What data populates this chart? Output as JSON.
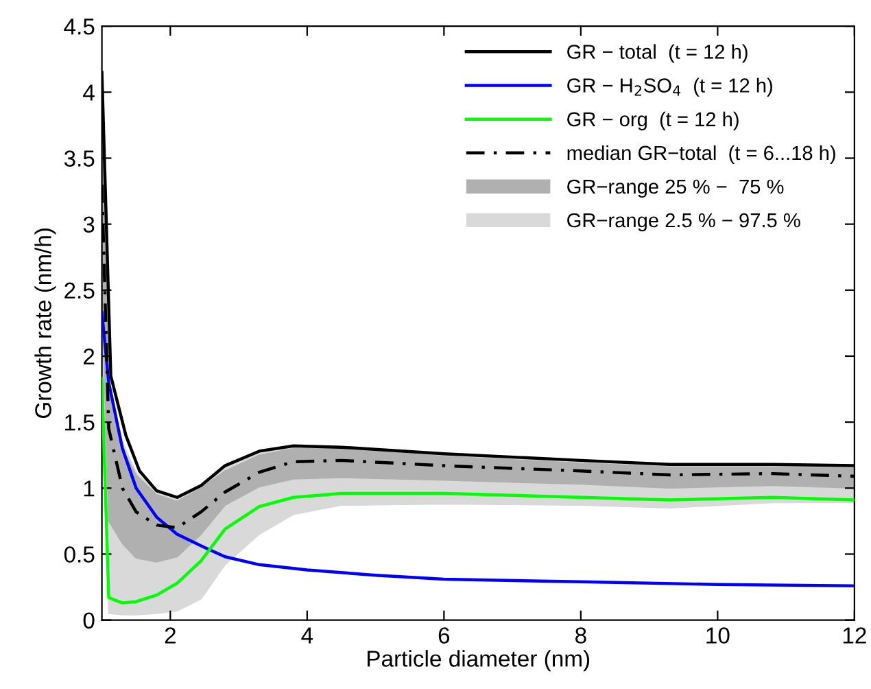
{
  "chart_data": {
    "type": "line",
    "xlabel": "Particle diameter (nm)",
    "ylabel": "Growth rate (nm/h)",
    "xlim": [
      1,
      12
    ],
    "ylim": [
      0,
      4.5
    ],
    "xticks": [
      2,
      4,
      6,
      8,
      10,
      12
    ],
    "yticks": [
      0,
      0.5,
      1,
      1.5,
      2,
      2.5,
      3,
      3.5,
      4,
      4.5
    ],
    "grid": false,
    "legend": "top right",
    "marker": "none",
    "series": [
      {
        "name": "GR−range 2.5 % − 97.5 %",
        "color": "#d9d9d9",
        "x": [
          1,
          1.1,
          1.3,
          1.5,
          1.8,
          2.1,
          2.45,
          2.8,
          3.3,
          3.8,
          4.5,
          6,
          8,
          9.3,
          10.8,
          12
        ],
        "values": [
          null,
          null,
          null,
          null,
          null,
          null,
          null,
          null,
          null,
          null,
          null,
          null,
          null,
          null,
          null,
          null
        ],
        "lower": [
          1.5,
          0.05,
          0.04,
          0.04,
          0.05,
          0.07,
          0.16,
          0.42,
          0.65,
          0.8,
          0.87,
          0.88,
          0.87,
          0.85,
          0.89,
          0.89
        ],
        "upper": [
          4.1,
          1.8,
          1.35,
          1.12,
          0.97,
          0.93,
          1.02,
          1.16,
          1.28,
          1.32,
          1.31,
          1.26,
          1.21,
          1.18,
          1.18,
          1.17
        ]
      },
      {
        "name": "GR−range 25 % −  75 %",
        "color": "#b0b0b0",
        "x": [
          1,
          1.1,
          1.3,
          1.5,
          1.8,
          2.1,
          2.45,
          2.8,
          3.3,
          3.8,
          4.5,
          6,
          8,
          9.3,
          10.8,
          12
        ],
        "values": [
          null,
          null,
          null,
          null,
          null,
          null,
          null,
          null,
          null,
          null,
          null,
          null,
          null,
          null,
          null,
          null
        ],
        "lower": [
          2.5,
          0.75,
          0.58,
          0.47,
          0.44,
          0.48,
          0.65,
          0.87,
          1.01,
          1.07,
          1.08,
          1.06,
          1.03,
          1.0,
          1.02,
          1.0
        ],
        "upper": [
          3.8,
          1.75,
          1.3,
          1.1,
          0.95,
          0.9,
          1.0,
          1.13,
          1.25,
          1.3,
          1.3,
          1.24,
          1.19,
          1.16,
          1.16,
          1.15
        ]
      },
      {
        "name": "GR − total  (t = 12 h)",
        "color": "#000000",
        "line_style": "solid",
        "x": [
          1,
          1.13,
          1.35,
          1.55,
          1.8,
          2.1,
          2.45,
          2.8,
          3.3,
          3.8,
          4.5,
          6,
          8,
          9.3,
          10.8,
          12
        ],
        "values": [
          4.15,
          1.85,
          1.4,
          1.13,
          0.98,
          0.93,
          1.02,
          1.17,
          1.28,
          1.32,
          1.31,
          1.26,
          1.21,
          1.18,
          1.18,
          1.17
        ]
      },
      {
        "name": "GR − H$_{2}$SO$_{4}$  (t = 12 h)",
        "color": "#0000ff",
        "line_style": "solid",
        "x": [
          1,
          1.1,
          1.3,
          1.5,
          1.8,
          2.1,
          2.5,
          2.8,
          3.3,
          4,
          5,
          6,
          8,
          10,
          12
        ],
        "values": [
          2.33,
          1.8,
          1.3,
          1.0,
          0.78,
          0.65,
          0.55,
          0.48,
          0.42,
          0.38,
          0.34,
          0.31,
          0.29,
          0.27,
          0.26
        ]
      },
      {
        "name": "GR − org  (t = 12 h)",
        "color": "#00ff00",
        "line_style": "solid",
        "x": [
          1,
          1.1,
          1.3,
          1.5,
          1.8,
          2.1,
          2.45,
          2.8,
          3.3,
          3.8,
          4.5,
          6,
          8,
          9.3,
          10.8,
          12
        ],
        "values": [
          1.83,
          0.17,
          0.13,
          0.14,
          0.19,
          0.28,
          0.45,
          0.69,
          0.86,
          0.93,
          0.96,
          0.96,
          0.93,
          0.91,
          0.93,
          0.91
        ]
      },
      {
        "name": "median GR−total  (t = 6...18 h)",
        "color": "#000000",
        "line_style": "dashdot",
        "x": [
          1,
          1.1,
          1.3,
          1.5,
          1.8,
          2.1,
          2.45,
          2.8,
          3.3,
          3.8,
          4.5,
          6,
          8,
          9.3,
          10.8,
          12
        ],
        "values": [
          3.3,
          1.45,
          1.0,
          0.82,
          0.72,
          0.7,
          0.82,
          0.97,
          1.12,
          1.2,
          1.21,
          1.17,
          1.13,
          1.1,
          1.11,
          1.09
        ]
      }
    ]
  }
}
